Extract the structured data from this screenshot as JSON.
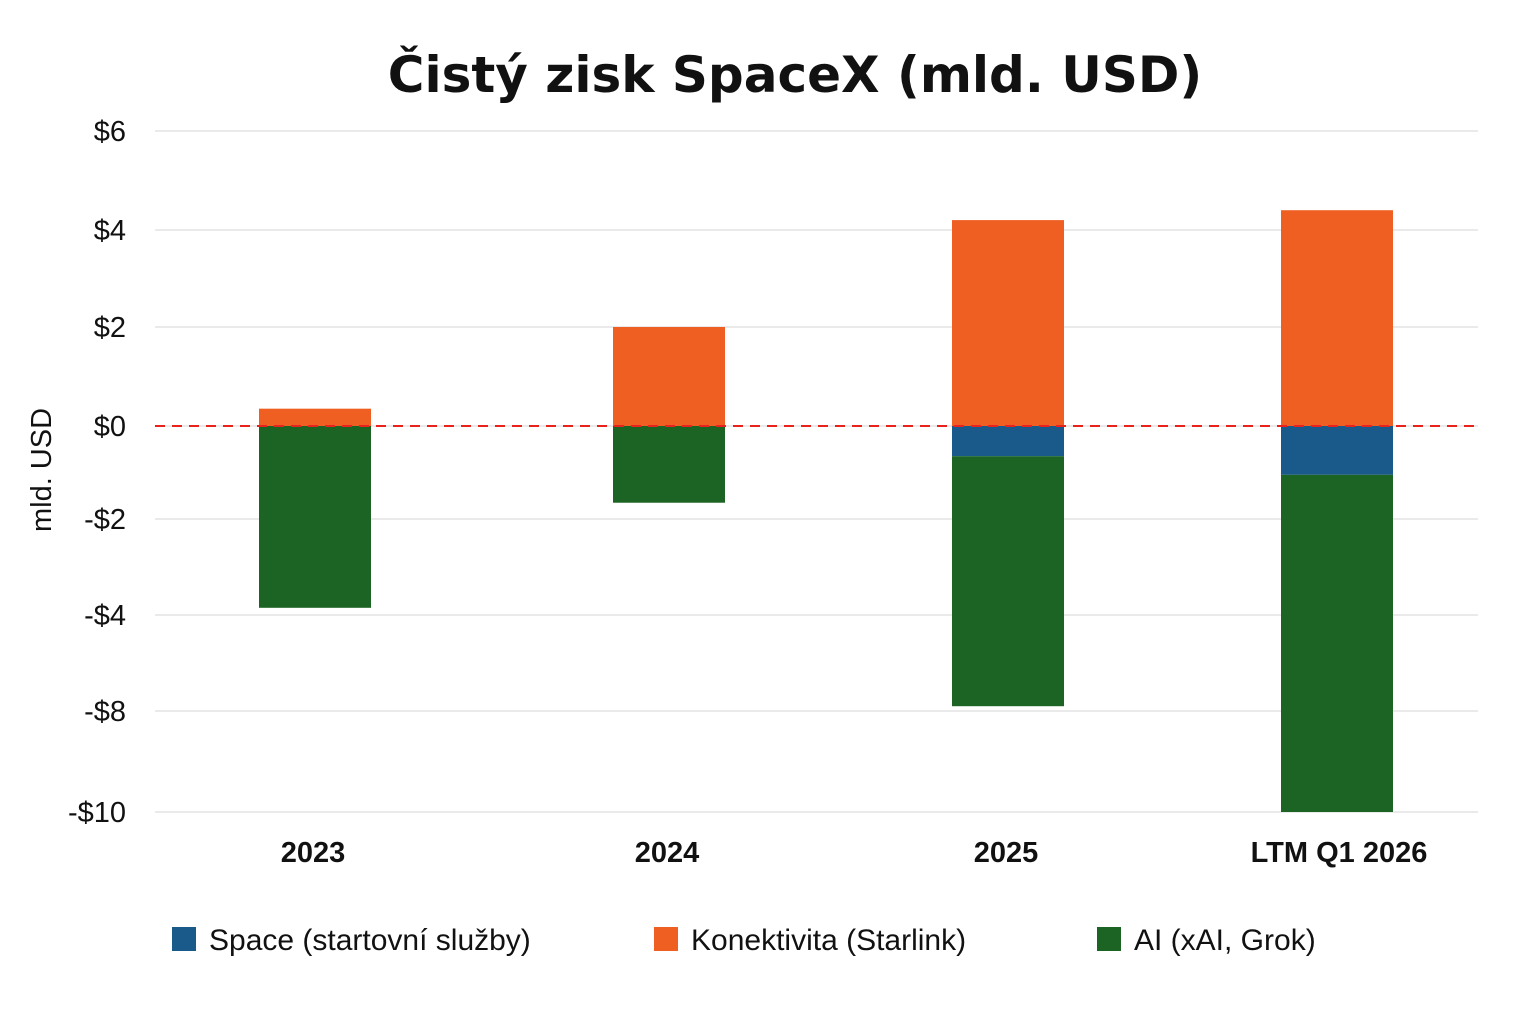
{
  "chart_data": {
    "type": "bar",
    "stacked": true,
    "title": "Čistý zisk SpaceX (mld. USD)",
    "xlabel": "",
    "ylabel": "mld. USD",
    "categories": [
      "2023",
      "2024",
      "2025",
      "LTM Q1 2026"
    ],
    "y_ticks": [
      6,
      4,
      2,
      0,
      -2,
      -4,
      -8,
      -10
    ],
    "y_tick_labels": [
      "$6",
      "$4",
      "$2",
      "$0",
      "-$2",
      "-$4",
      "-$8",
      "-$10"
    ],
    "ylim": [
      -10,
      6
    ],
    "grid": true,
    "zero_line": {
      "style": "dashed",
      "color": "#e8231e"
    },
    "legend_position": "bottom",
    "series": [
      {
        "name": "Space (startovní služby)",
        "color": "#1a5a8a",
        "values": [
          0,
          0,
          -0.65,
          -1.05
        ]
      },
      {
        "name": "Konektivita (Starlink)",
        "color": "#f05f22",
        "values": [
          0.35,
          2.0,
          4.2,
          4.4
        ]
      },
      {
        "name": "AI (xAI, Grok)",
        "color": "#1b6423",
        "values": [
          -3.85,
          -1.65,
          -7.15,
          -8.95
        ]
      }
    ]
  }
}
